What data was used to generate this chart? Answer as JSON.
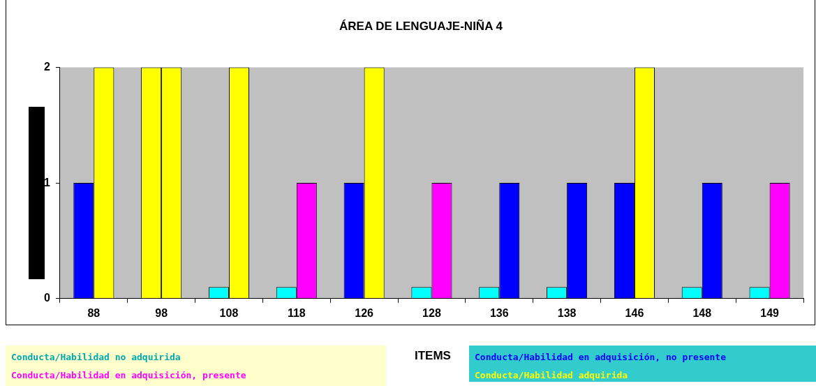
{
  "chart_data": {
    "type": "bar",
    "title": "ÁREA DE LENGUAJE-NIÑA 4",
    "xlabel": "ITEMS",
    "categories": [
      "88",
      "98",
      "108",
      "118",
      "126",
      "128",
      "136",
      "138",
      "146",
      "148",
      "149"
    ],
    "series": [
      {
        "values": [
          1,
          2,
          0.1,
          0.1,
          1,
          0.1,
          0.1,
          0.1,
          1,
          0.1,
          0.1
        ],
        "colors": [
          "#0000ff",
          "#ffff00",
          "#00ffff",
          "#00ffff",
          "#0000ff",
          "#00ffff",
          "#00ffff",
          "#00ffff",
          "#0000ff",
          "#00ffff",
          "#00ffff"
        ]
      },
      {
        "values": [
          2,
          2,
          2,
          1,
          2,
          1,
          1,
          1,
          2,
          1,
          1
        ],
        "colors": [
          "#ffff00",
          "#ffff00",
          "#ffff00",
          "#ff00ff",
          "#ffff00",
          "#ff00ff",
          "#0000ff",
          "#0000ff",
          "#ffff00",
          "#0000ff",
          "#ff00ff"
        ]
      }
    ],
    "ylim": [
      0,
      2
    ],
    "yticks": [
      0,
      1,
      2
    ],
    "grid": false,
    "legend": false,
    "annotations": [
      "Conducta/Habilidad no adquirida",
      "Conducta/Habilidad en adquisición, presente",
      "Conducta/Habilidad en adquisición, no presente",
      "Conducta/Habilidad adquirida"
    ]
  }
}
